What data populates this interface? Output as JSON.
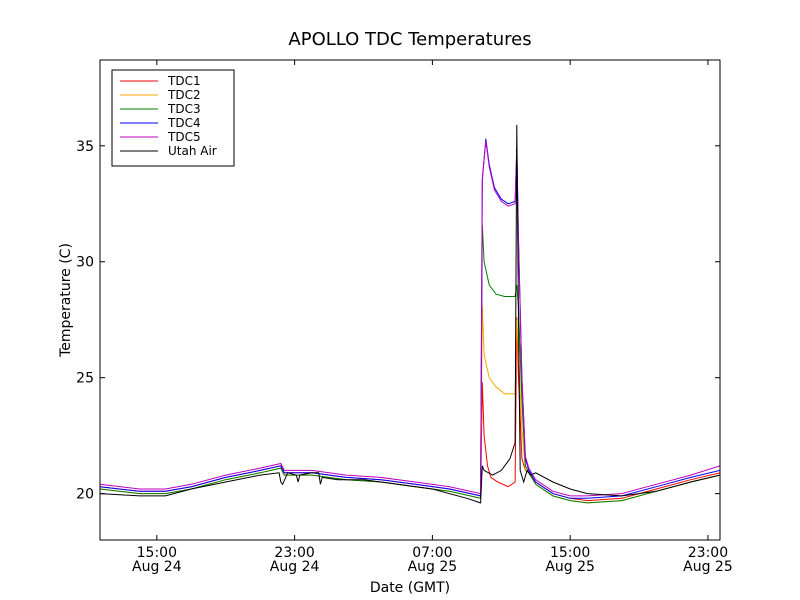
{
  "chart_data": {
    "type": "line",
    "title": "APOLLO TDC Temperatures",
    "xlabel": "Date (GMT)",
    "ylabel": "Temperature (C)",
    "x_unit": "hours since Aug 24 00:00 GMT",
    "xlim": [
      11.7,
      47.7
    ],
    "ylim": [
      18,
      38.7
    ],
    "x_ticks": [
      {
        "value": 15,
        "time": "15:00",
        "date": "Aug 24"
      },
      {
        "value": 23,
        "time": "23:00",
        "date": "Aug 24"
      },
      {
        "value": 31,
        "time": "07:00",
        "date": "Aug 25"
      },
      {
        "value": 39,
        "time": "15:00",
        "date": "Aug 25"
      },
      {
        "value": 47,
        "time": "23:00",
        "date": "Aug 25"
      }
    ],
    "y_ticks": [
      {
        "value": 20,
        "label": "20"
      },
      {
        "value": 25,
        "label": "25"
      },
      {
        "value": 30,
        "label": "30"
      },
      {
        "value": 35,
        "label": "35"
      }
    ],
    "legend_position": "top-left",
    "series": [
      {
        "name": "TDC1",
        "color": "#ff0000",
        "x": [
          11.7,
          14,
          15.5,
          17,
          19,
          21,
          22.2,
          22.4,
          23,
          24,
          26,
          28,
          30,
          32,
          33.8,
          33.9,
          34.0,
          34.2,
          34.4,
          34.8,
          35.4,
          35.8,
          35.9,
          36.0,
          36.2,
          36.4,
          36.6,
          37,
          38,
          39,
          40,
          42,
          44,
          46,
          47.7
        ],
        "y": [
          20.3,
          20.1,
          20.1,
          20.3,
          20.7,
          21.0,
          21.2,
          20.9,
          20.9,
          20.9,
          20.7,
          20.6,
          20.4,
          20.2,
          19.9,
          24.8,
          22.5,
          21.2,
          20.7,
          20.5,
          20.3,
          20.5,
          27.6,
          25.0,
          21.5,
          21.0,
          20.9,
          20.5,
          20.0,
          19.8,
          19.7,
          19.8,
          20.2,
          20.6,
          20.9
        ]
      },
      {
        "name": "TDC2",
        "color": "#ffa500",
        "x": [
          11.7,
          14,
          15.5,
          17,
          19,
          21,
          22.2,
          22.4,
          23,
          24,
          26,
          28,
          30,
          32,
          33.8,
          33.9,
          34.0,
          34.3,
          34.7,
          35.2,
          35.8,
          35.9,
          36.0,
          36.2,
          36.4,
          36.6,
          37,
          38,
          39,
          40,
          42,
          44,
          46,
          47.7
        ],
        "y": [
          20.2,
          20.0,
          20.0,
          20.2,
          20.6,
          20.9,
          21.1,
          20.8,
          20.8,
          20.8,
          20.6,
          20.5,
          20.3,
          20.1,
          19.8,
          28.1,
          26.0,
          25.0,
          24.6,
          24.3,
          24.3,
          27.5,
          26.0,
          22.8,
          21.0,
          20.9,
          20.4,
          19.9,
          19.7,
          19.6,
          19.7,
          20.1,
          20.5,
          20.8
        ]
      },
      {
        "name": "TDC3",
        "color": "#008000",
        "x": [
          11.7,
          14,
          15.5,
          17,
          19,
          21,
          22.2,
          22.4,
          23,
          24,
          26,
          28,
          30,
          32,
          33.8,
          33.9,
          34.0,
          34.3,
          34.7,
          35.2,
          35.8,
          35.9,
          36.0,
          36.2,
          36.4,
          36.6,
          37,
          38,
          39,
          40,
          42,
          44,
          46,
          47.7
        ],
        "y": [
          20.2,
          20.0,
          20.0,
          20.2,
          20.6,
          20.9,
          21.1,
          20.8,
          20.8,
          20.8,
          20.6,
          20.5,
          20.3,
          20.1,
          19.8,
          31.6,
          30.0,
          29.0,
          28.6,
          28.5,
          28.5,
          29.0,
          28.0,
          24.0,
          21.2,
          20.9,
          20.4,
          19.9,
          19.7,
          19.6,
          19.7,
          20.1,
          20.5,
          20.8
        ]
      },
      {
        "name": "TDC4",
        "color": "#0000ff",
        "x": [
          11.7,
          14,
          15.5,
          17,
          19,
          21,
          22.2,
          22.4,
          23,
          24,
          26,
          28,
          30,
          32,
          33.8,
          33.9,
          34.1,
          34.3,
          34.6,
          35.0,
          35.4,
          35.8,
          35.9,
          36.0,
          36.2,
          36.4,
          36.6,
          37,
          38,
          39,
          40,
          42,
          44,
          46,
          47.7
        ],
        "y": [
          20.3,
          20.1,
          20.1,
          20.3,
          20.7,
          21.0,
          21.2,
          20.9,
          20.9,
          20.9,
          20.7,
          20.6,
          20.4,
          20.2,
          19.9,
          33.5,
          35.3,
          34.2,
          33.2,
          32.7,
          32.5,
          32.6,
          35.0,
          31.0,
          25.0,
          21.5,
          21.0,
          20.5,
          20.0,
          19.8,
          19.8,
          19.9,
          20.3,
          20.7,
          21.0
        ]
      },
      {
        "name": "TDC5",
        "color": "#bf00bf",
        "x": [
          11.7,
          14,
          15.5,
          17,
          19,
          21,
          22.2,
          22.4,
          23,
          24,
          26,
          28,
          30,
          32,
          33.8,
          33.9,
          34.1,
          34.3,
          34.6,
          35.0,
          35.4,
          35.8,
          35.9,
          36.0,
          36.2,
          36.4,
          36.6,
          37,
          38,
          39,
          40,
          42,
          44,
          46,
          47.7
        ],
        "y": [
          20.4,
          20.2,
          20.2,
          20.4,
          20.8,
          21.1,
          21.3,
          21.0,
          21.0,
          21.0,
          20.8,
          20.7,
          20.5,
          20.3,
          20.0,
          33.6,
          35.2,
          34.1,
          33.1,
          32.6,
          32.4,
          32.5,
          34.8,
          30.8,
          25.0,
          21.6,
          21.1,
          20.6,
          20.1,
          19.9,
          19.9,
          20.0,
          20.4,
          20.8,
          21.2
        ]
      },
      {
        "name": "Utah Air",
        "color": "#000000",
        "x": [
          11.7,
          14,
          15.5,
          17,
          19,
          21,
          22.1,
          22.2,
          22.3,
          22.6,
          23.1,
          23.2,
          23.3,
          24.0,
          24.4,
          24.5,
          24.6,
          25.5,
          27,
          29,
          31,
          33,
          33.8,
          33.9,
          34.0,
          34.5,
          35.0,
          35.5,
          35.8,
          35.9,
          36.0,
          36.1,
          36.3,
          36.5,
          36.7,
          37.0,
          38,
          39,
          40,
          42,
          44,
          46,
          47.7
        ],
        "y": [
          20.0,
          19.9,
          19.9,
          20.2,
          20.5,
          20.8,
          20.9,
          20.5,
          20.4,
          20.9,
          20.8,
          20.5,
          20.8,
          20.9,
          20.9,
          20.4,
          20.7,
          20.6,
          20.6,
          20.4,
          20.2,
          19.8,
          19.6,
          21.2,
          21.0,
          20.8,
          21.0,
          21.5,
          22.2,
          35.9,
          27.5,
          21.0,
          20.5,
          21.0,
          20.8,
          20.9,
          20.5,
          20.2,
          20.0,
          19.9,
          20.1,
          20.5,
          20.8
        ]
      }
    ]
  }
}
